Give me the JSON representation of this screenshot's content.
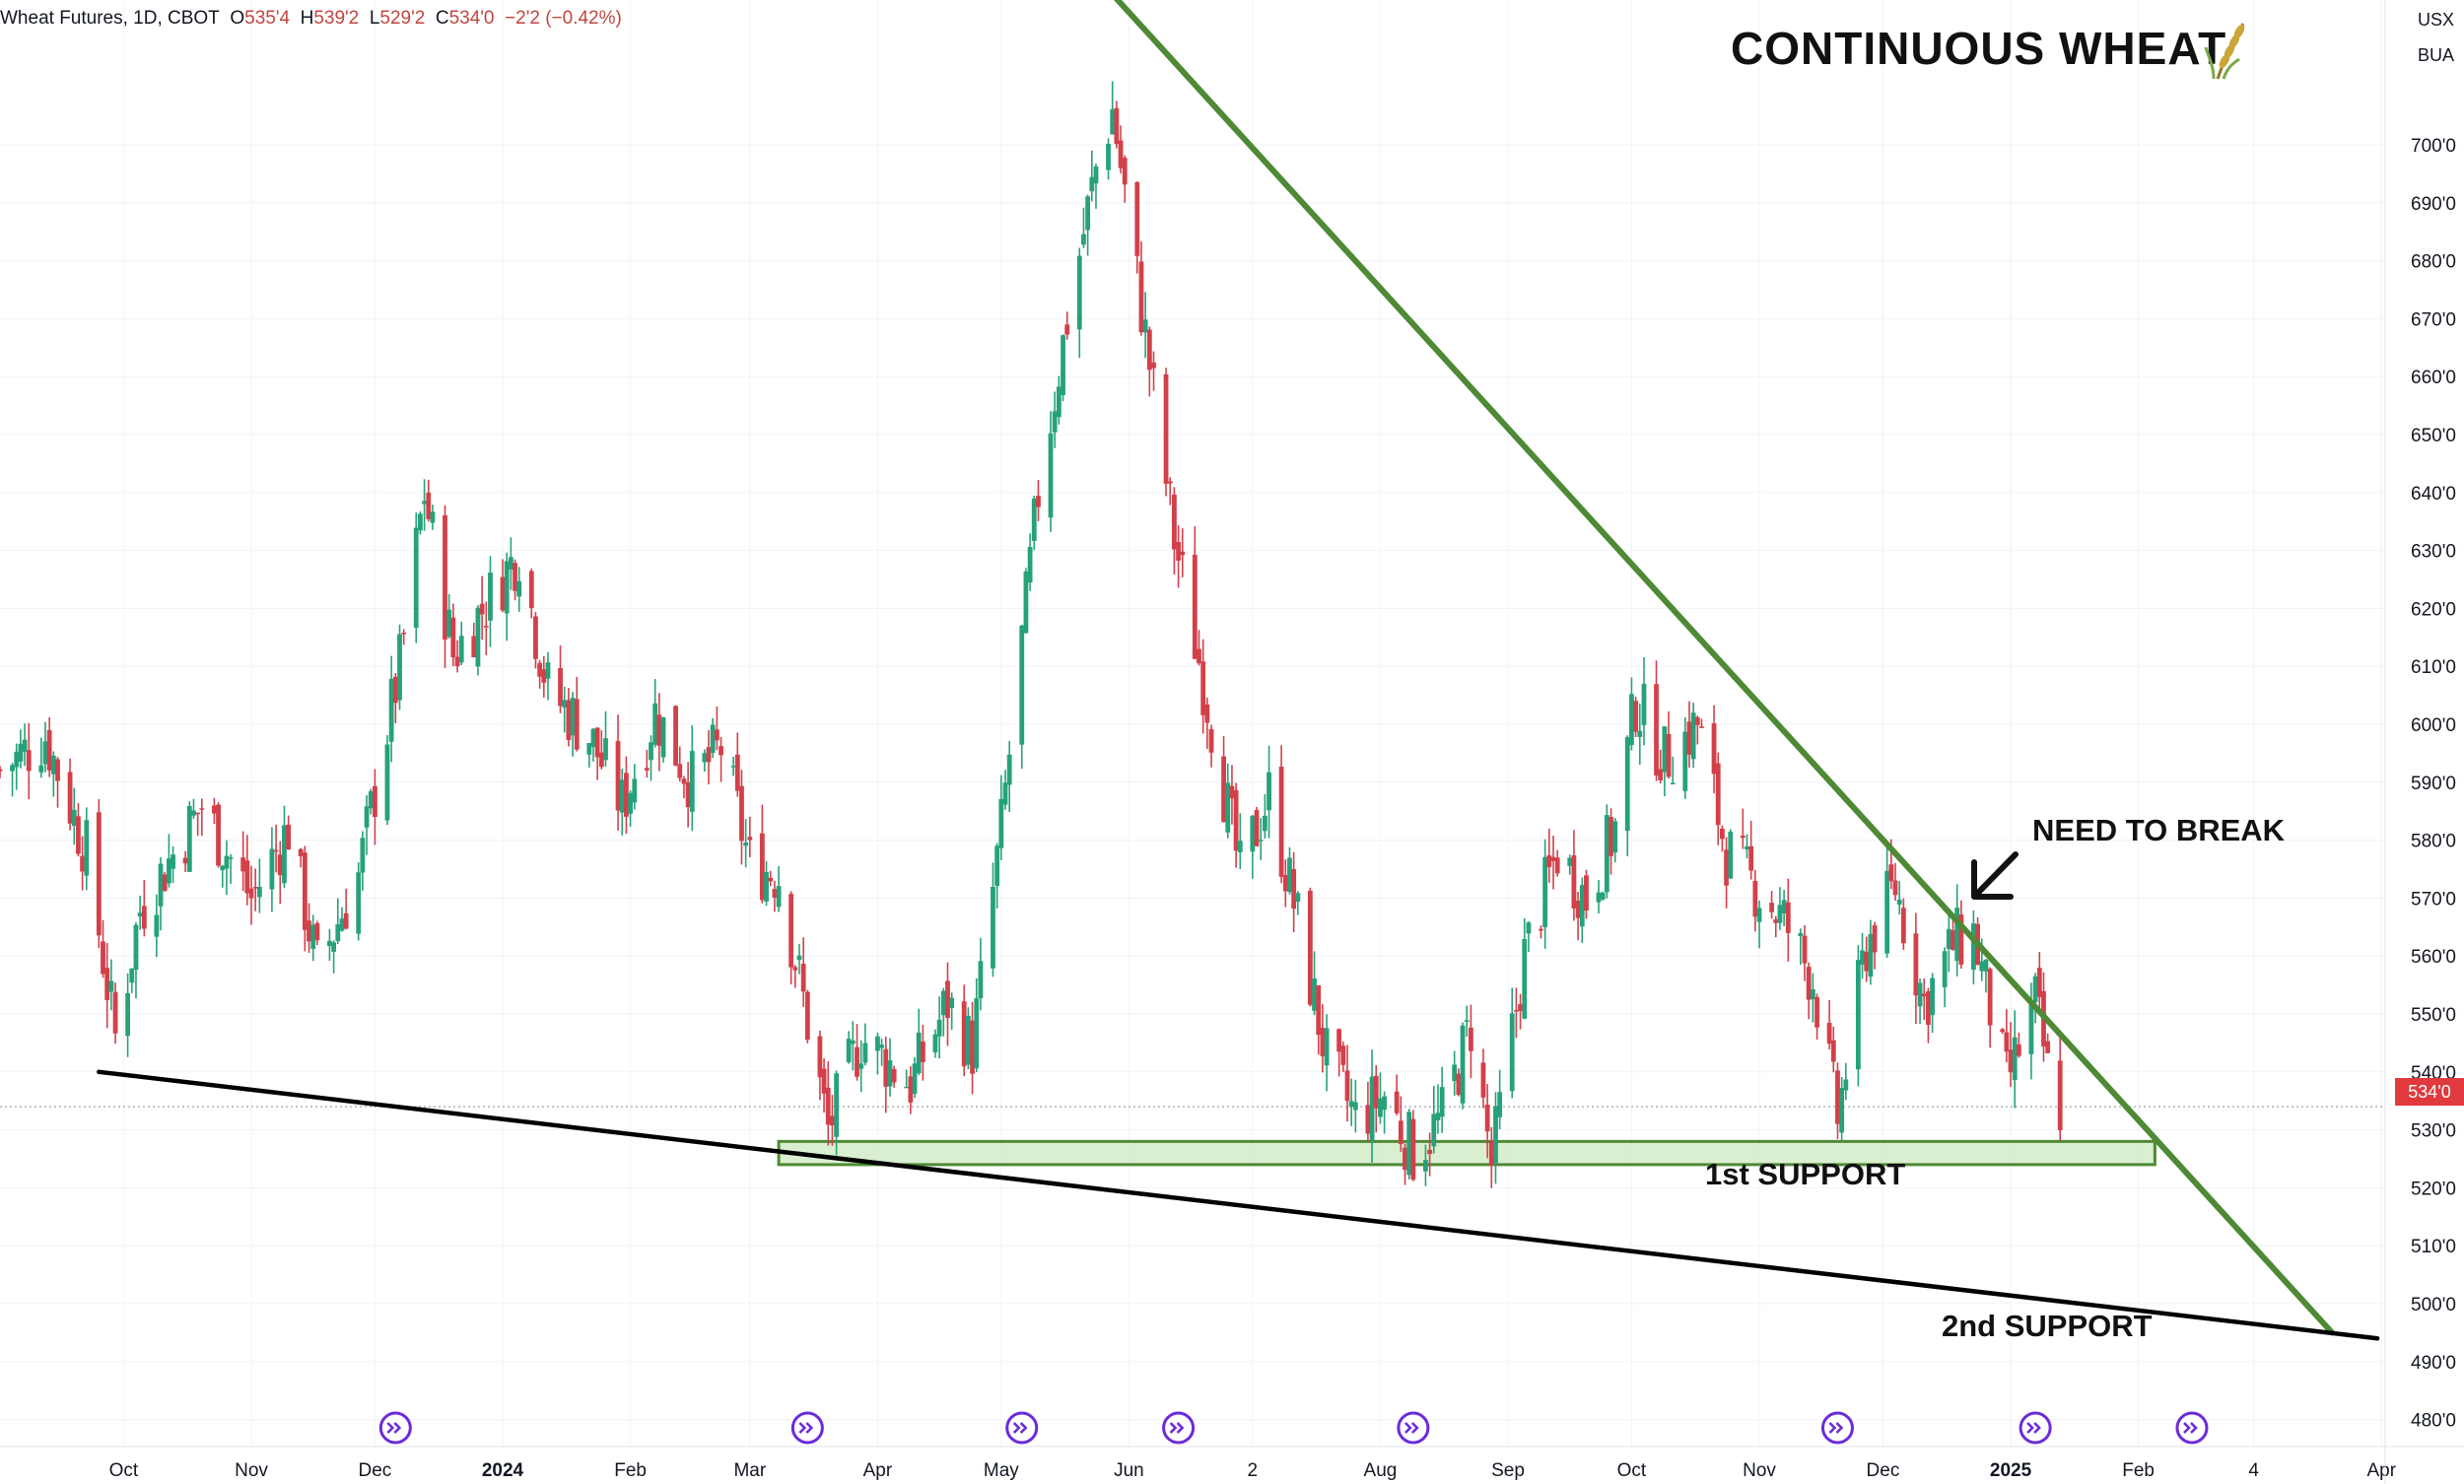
{
  "header": {
    "symbol": "Wheat Futures, 1D, CBOT",
    "o_label": "O",
    "o_value": "535'4",
    "h_label": "H",
    "h_value": "539'2",
    "l_label": "L",
    "l_value": "529'2",
    "c_label": "C",
    "c_value": "534'0",
    "change": "−2'2 (−0.42%)"
  },
  "title": "CONTINUOUS WHEAT",
  "units": {
    "currency": "USX",
    "measure": "BUA"
  },
  "last_price_label": "534'0",
  "colors": {
    "up": "#26a17b",
    "down": "#d2404a",
    "trendline_green": "#4e8a35",
    "trendline_black": "#000000",
    "support_fill": "#d4ecc8",
    "events": "#6c2bd9"
  },
  "chart_data": {
    "type": "candlestick",
    "y_axis": {
      "range": [
        475,
        725
      ],
      "ticks": [
        480,
        490,
        500,
        510,
        520,
        530,
        540,
        550,
        560,
        570,
        580,
        590,
        600,
        610,
        620,
        630,
        640,
        650,
        660,
        670,
        680,
        690,
        700
      ],
      "tick_labels": [
        "480'0",
        "490'0",
        "500'0",
        "510'0",
        "520'0",
        "530'0",
        "540'0",
        "550'0",
        "560'0",
        "570'0",
        "580'0",
        "590'0",
        "600'0",
        "610'0",
        "620'0",
        "630'0",
        "640'0",
        "650'0",
        "660'0",
        "670'0",
        "680'0",
        "690'0",
        "700'0"
      ]
    },
    "x_axis": {
      "labels": [
        "Oct",
        "Nov",
        "Dec",
        "2024",
        "Feb",
        "Mar",
        "Apr",
        "May",
        "Jun",
        "2",
        "Aug",
        "Sep",
        "Oct",
        "Nov",
        "Dec",
        "2025",
        "Feb",
        "4",
        "Apr"
      ],
      "label_dates": [
        "2023-10-01",
        "2023-11-01",
        "2023-12-01",
        "2024-01-01",
        "2024-02-01",
        "2024-03-01",
        "2024-04-01",
        "2024-05-01",
        "2024-06-01",
        "2024-07-01",
        "2024-08-01",
        "2024-09-01",
        "2024-10-01",
        "2024-11-01",
        "2024-12-01",
        "2025-01-01",
        "2025-02-01",
        "2025-03-01",
        "2025-04-01"
      ],
      "bold_labels": [
        "2024",
        "2025"
      ]
    },
    "price_path": [
      [
        "2023-09-01",
        592
      ],
      [
        "2023-09-12",
        598
      ],
      [
        "2023-09-22",
        578
      ],
      [
        "2023-09-29",
        546
      ],
      [
        "2023-10-05",
        568
      ],
      [
        "2023-10-20",
        586
      ],
      [
        "2023-11-01",
        570
      ],
      [
        "2023-11-10",
        582
      ],
      [
        "2023-11-17",
        558
      ],
      [
        "2023-11-27",
        574
      ],
      [
        "2023-12-07",
        610
      ],
      [
        "2023-12-13",
        640
      ],
      [
        "2023-12-20",
        612
      ],
      [
        "2023-12-29",
        622
      ],
      [
        "2024-01-05",
        630
      ],
      [
        "2024-01-12",
        606
      ],
      [
        "2024-01-22",
        598
      ],
      [
        "2024-01-30",
        586
      ],
      [
        "2024-02-07",
        602
      ],
      [
        "2024-02-16",
        590
      ],
      [
        "2024-02-23",
        596
      ],
      [
        "2024-03-01",
        576
      ],
      [
        "2024-03-08",
        574
      ],
      [
        "2024-03-13",
        556
      ],
      [
        "2024-03-20",
        530
      ],
      [
        "2024-03-28",
        546
      ],
      [
        "2024-04-09",
        538
      ],
      [
        "2024-04-18",
        552
      ],
      [
        "2024-04-24",
        544
      ],
      [
        "2024-05-01",
        582
      ],
      [
        "2024-05-10",
        640
      ],
      [
        "2024-05-17",
        670
      ],
      [
        "2024-05-24",
        696
      ],
      [
        "2024-05-28",
        706
      ],
      [
        "2024-06-04",
        672
      ],
      [
        "2024-06-12",
        632
      ],
      [
        "2024-06-20",
        604
      ],
      [
        "2024-06-28",
        574
      ],
      [
        "2024-07-05",
        588
      ],
      [
        "2024-07-12",
        566
      ],
      [
        "2024-07-19",
        542
      ],
      [
        "2024-07-26",
        532
      ],
      [
        "2024-08-02",
        536
      ],
      [
        "2024-08-09",
        526
      ],
      [
        "2024-08-16",
        532
      ],
      [
        "2024-08-23",
        548
      ],
      [
        "2024-08-28",
        524
      ],
      [
        "2024-09-05",
        560
      ],
      [
        "2024-09-13",
        578
      ],
      [
        "2024-09-20",
        570
      ],
      [
        "2024-09-27",
        582
      ],
      [
        "2024-10-02",
        604
      ],
      [
        "2024-10-09",
        594
      ],
      [
        "2024-10-17",
        600
      ],
      [
        "2024-10-24",
        578
      ],
      [
        "2024-10-31",
        572
      ],
      [
        "2024-11-07",
        566
      ],
      [
        "2024-11-14",
        556
      ],
      [
        "2024-11-20",
        532
      ],
      [
        "2024-11-27",
        562
      ],
      [
        "2024-12-04",
        572
      ],
      [
        "2024-12-11",
        552
      ],
      [
        "2024-12-18",
        562
      ],
      [
        "2024-12-23",
        564
      ],
      [
        "2024-12-31",
        538
      ],
      [
        "2025-01-07",
        552
      ],
      [
        "2025-01-10",
        540
      ],
      [
        "2025-01-13",
        534
      ]
    ],
    "trendlines": [
      {
        "name": "descending resistance",
        "color": "green",
        "from": [
          "2024-05-28",
          726
        ],
        "to": [
          "2025-03-20",
          495
        ]
      },
      {
        "name": "support trendline",
        "color": "black",
        "from": [
          "2023-09-25",
          540
        ],
        "to": [
          "2025-03-31",
          494
        ]
      }
    ],
    "zones": [
      {
        "label": "1st SUPPORT",
        "from": "2024-03-08",
        "to": "2025-02-05",
        "low": 524,
        "high": 528
      }
    ],
    "last_price": 534,
    "annotations": [
      {
        "text": "NEED TO BREAK",
        "arrow": "down-left"
      },
      {
        "text": "1st SUPPORT"
      },
      {
        "text": "2nd SUPPORT"
      }
    ],
    "event_markers": [
      "2023-12-06",
      "2024-03-15",
      "2024-05-06",
      "2024-06-13",
      "2024-08-09",
      "2024-11-20",
      "2025-01-07",
      "2025-02-14"
    ]
  }
}
